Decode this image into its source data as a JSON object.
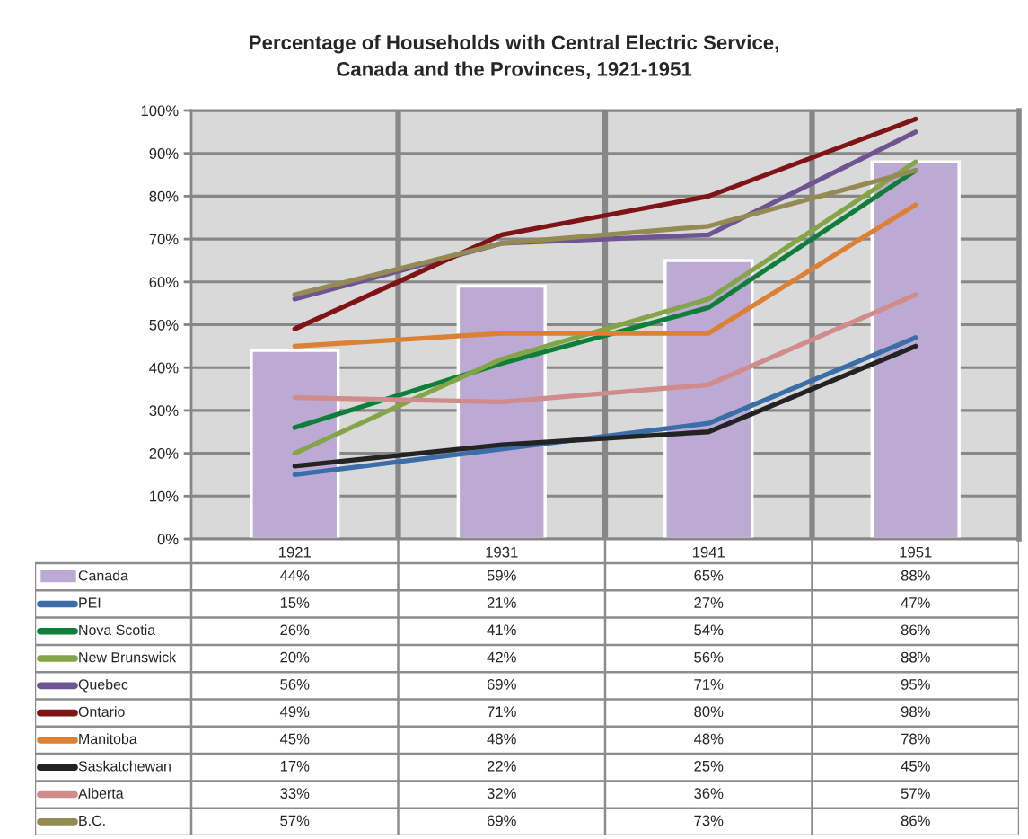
{
  "chart_data": {
    "type": "line",
    "title": "Percentage of Households with Central Electric Service,\nCanada and the Provinces, 1921-1951",
    "categories": [
      "1921",
      "1931",
      "1941",
      "1951"
    ],
    "ylim": [
      0,
      100
    ],
    "yticks": [
      {
        "value": 0,
        "label": "0%"
      },
      {
        "value": 10,
        "label": "10%"
      },
      {
        "value": 20,
        "label": "20%"
      },
      {
        "value": 30,
        "label": "30%"
      },
      {
        "value": 40,
        "label": "40%"
      },
      {
        "value": 50,
        "label": "50%"
      },
      {
        "value": 60,
        "label": "60%"
      },
      {
        "value": 70,
        "label": "70%"
      },
      {
        "value": 80,
        "label": "80%"
      },
      {
        "value": 90,
        "label": "90%"
      },
      {
        "value": 100,
        "label": "100%"
      }
    ],
    "grid": true,
    "legend": "bottom",
    "series": [
      {
        "name": "Canada",
        "type": "bar",
        "color": "#bcaad4",
        "values": [
          44,
          59,
          65,
          88
        ],
        "value_labels": [
          "44%",
          "59%",
          "65%",
          "88%"
        ]
      },
      {
        "name": "PEI",
        "color": "#3b6ea8",
        "values": [
          15,
          21,
          27,
          47
        ],
        "value_labels": [
          "15%",
          "21%",
          "27%",
          "47%"
        ]
      },
      {
        "name": "Nova Scotia",
        "color": "#0f7e3b",
        "values": [
          26,
          41,
          54,
          86
        ],
        "value_labels": [
          "26%",
          "41%",
          "54%",
          "86%"
        ]
      },
      {
        "name": "New Brunswick",
        "color": "#83a547",
        "values": [
          20,
          42,
          56,
          88
        ],
        "value_labels": [
          "20%",
          "42%",
          "56%",
          "88%"
        ]
      },
      {
        "name": "Quebec",
        "color": "#6c5592",
        "values": [
          56,
          69,
          71,
          95
        ],
        "value_labels": [
          "56%",
          "69%",
          "71%",
          "95%"
        ]
      },
      {
        "name": "Ontario",
        "color": "#7f1417",
        "values": [
          49,
          71,
          80,
          98
        ],
        "value_labels": [
          "49%",
          "71%",
          "80%",
          "98%"
        ]
      },
      {
        "name": "Manitoba",
        "color": "#dc8034",
        "values": [
          45,
          48,
          48,
          78
        ],
        "value_labels": [
          "45%",
          "48%",
          "48%",
          "78%"
        ]
      },
      {
        "name": "Saskatchewan",
        "color": "#232323",
        "values": [
          17,
          22,
          25,
          45
        ],
        "value_labels": [
          "17%",
          "22%",
          "25%",
          "45%"
        ]
      },
      {
        "name": "Alberta",
        "color": "#d08b8b",
        "values": [
          33,
          32,
          36,
          57
        ],
        "value_labels": [
          "33%",
          "32%",
          "36%",
          "57%"
        ]
      },
      {
        "name": "B.C.",
        "color": "#948a54",
        "values": [
          57,
          69,
          73,
          86
        ],
        "value_labels": [
          "57%",
          "69%",
          "73%",
          "86%"
        ]
      }
    ]
  }
}
